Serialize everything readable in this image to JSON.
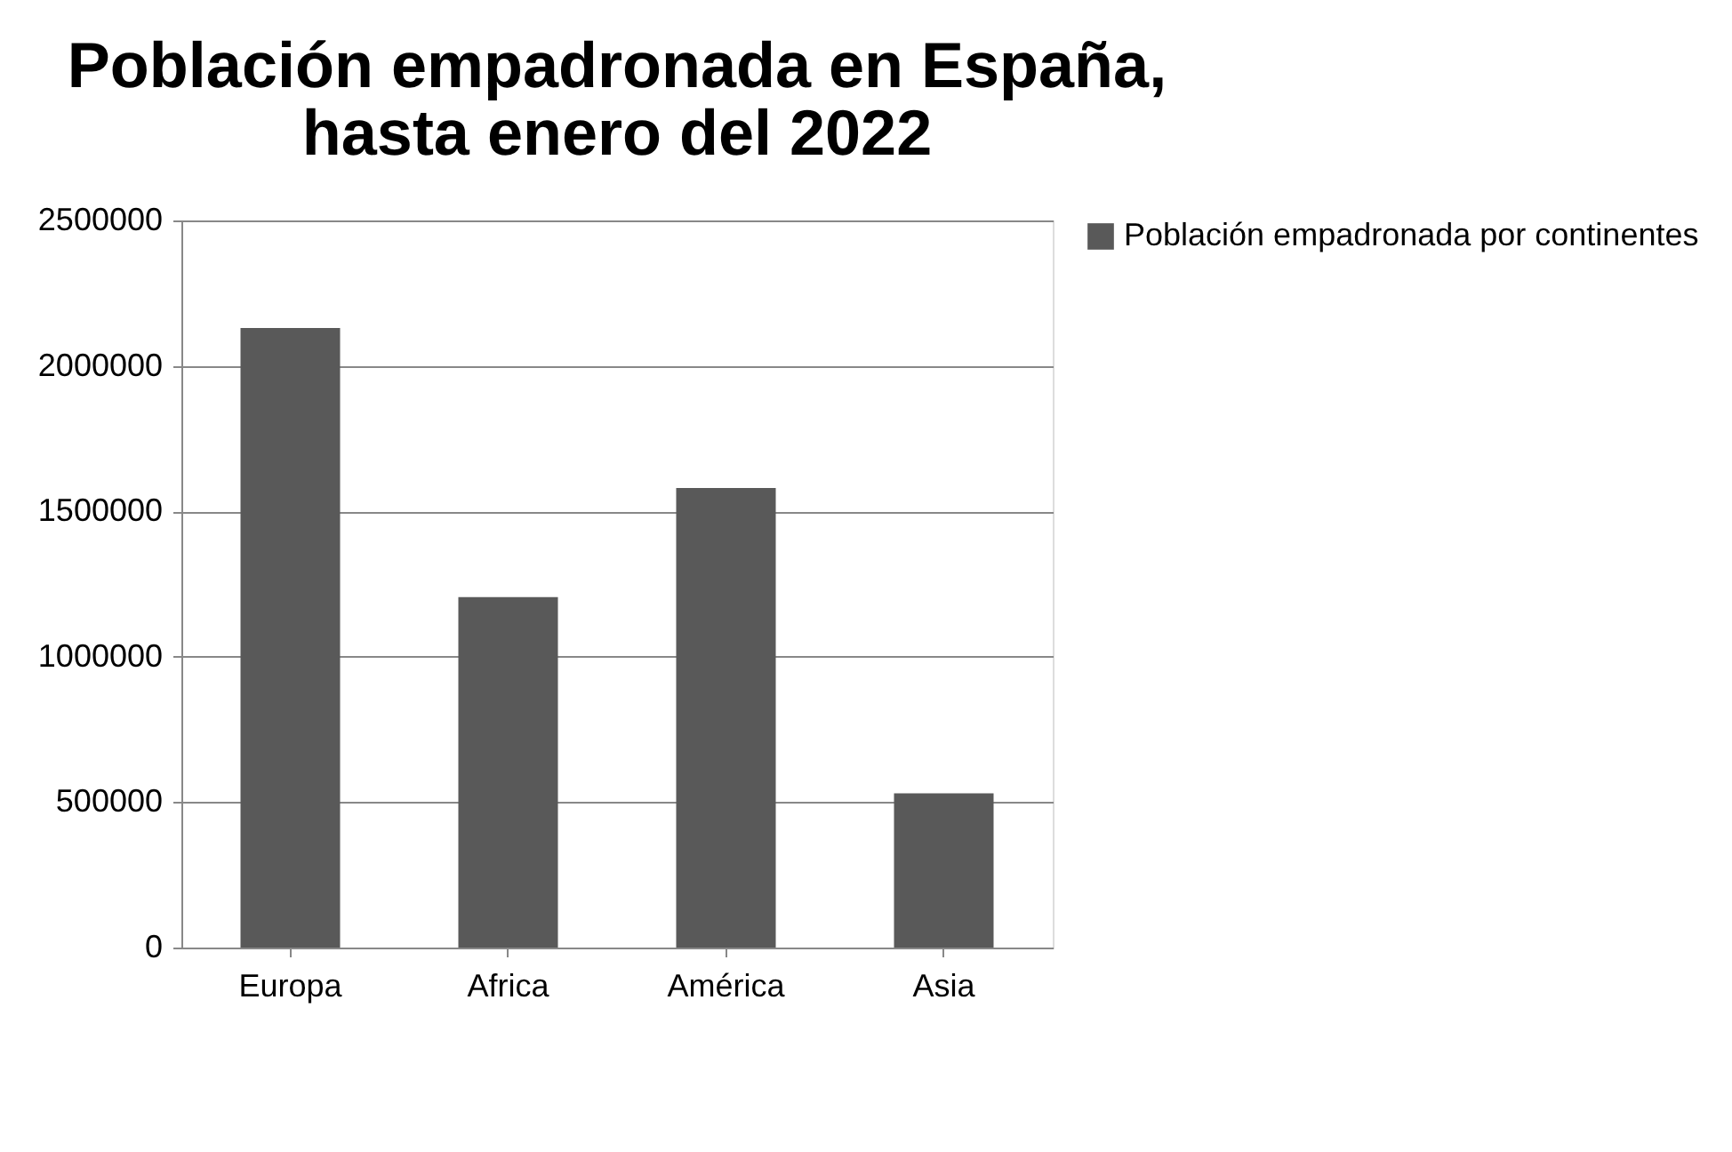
{
  "chart_data": {
    "type": "bar",
    "title": [
      "Población empadronada en España,",
      "hasta enero del 2022"
    ],
    "categories": [
      "Europa",
      "Africa",
      "América",
      "Asia"
    ],
    "series": [
      {
        "name": "Población empadronada por continentes",
        "color": "#595959",
        "values": [
          2130000,
          1205000,
          1580000,
          530000
        ]
      }
    ],
    "ylim": [
      0,
      2500000
    ],
    "yticks": [
      0,
      500000,
      1000000,
      1500000,
      2000000,
      2500000
    ],
    "grid": "y",
    "legend": "right"
  }
}
